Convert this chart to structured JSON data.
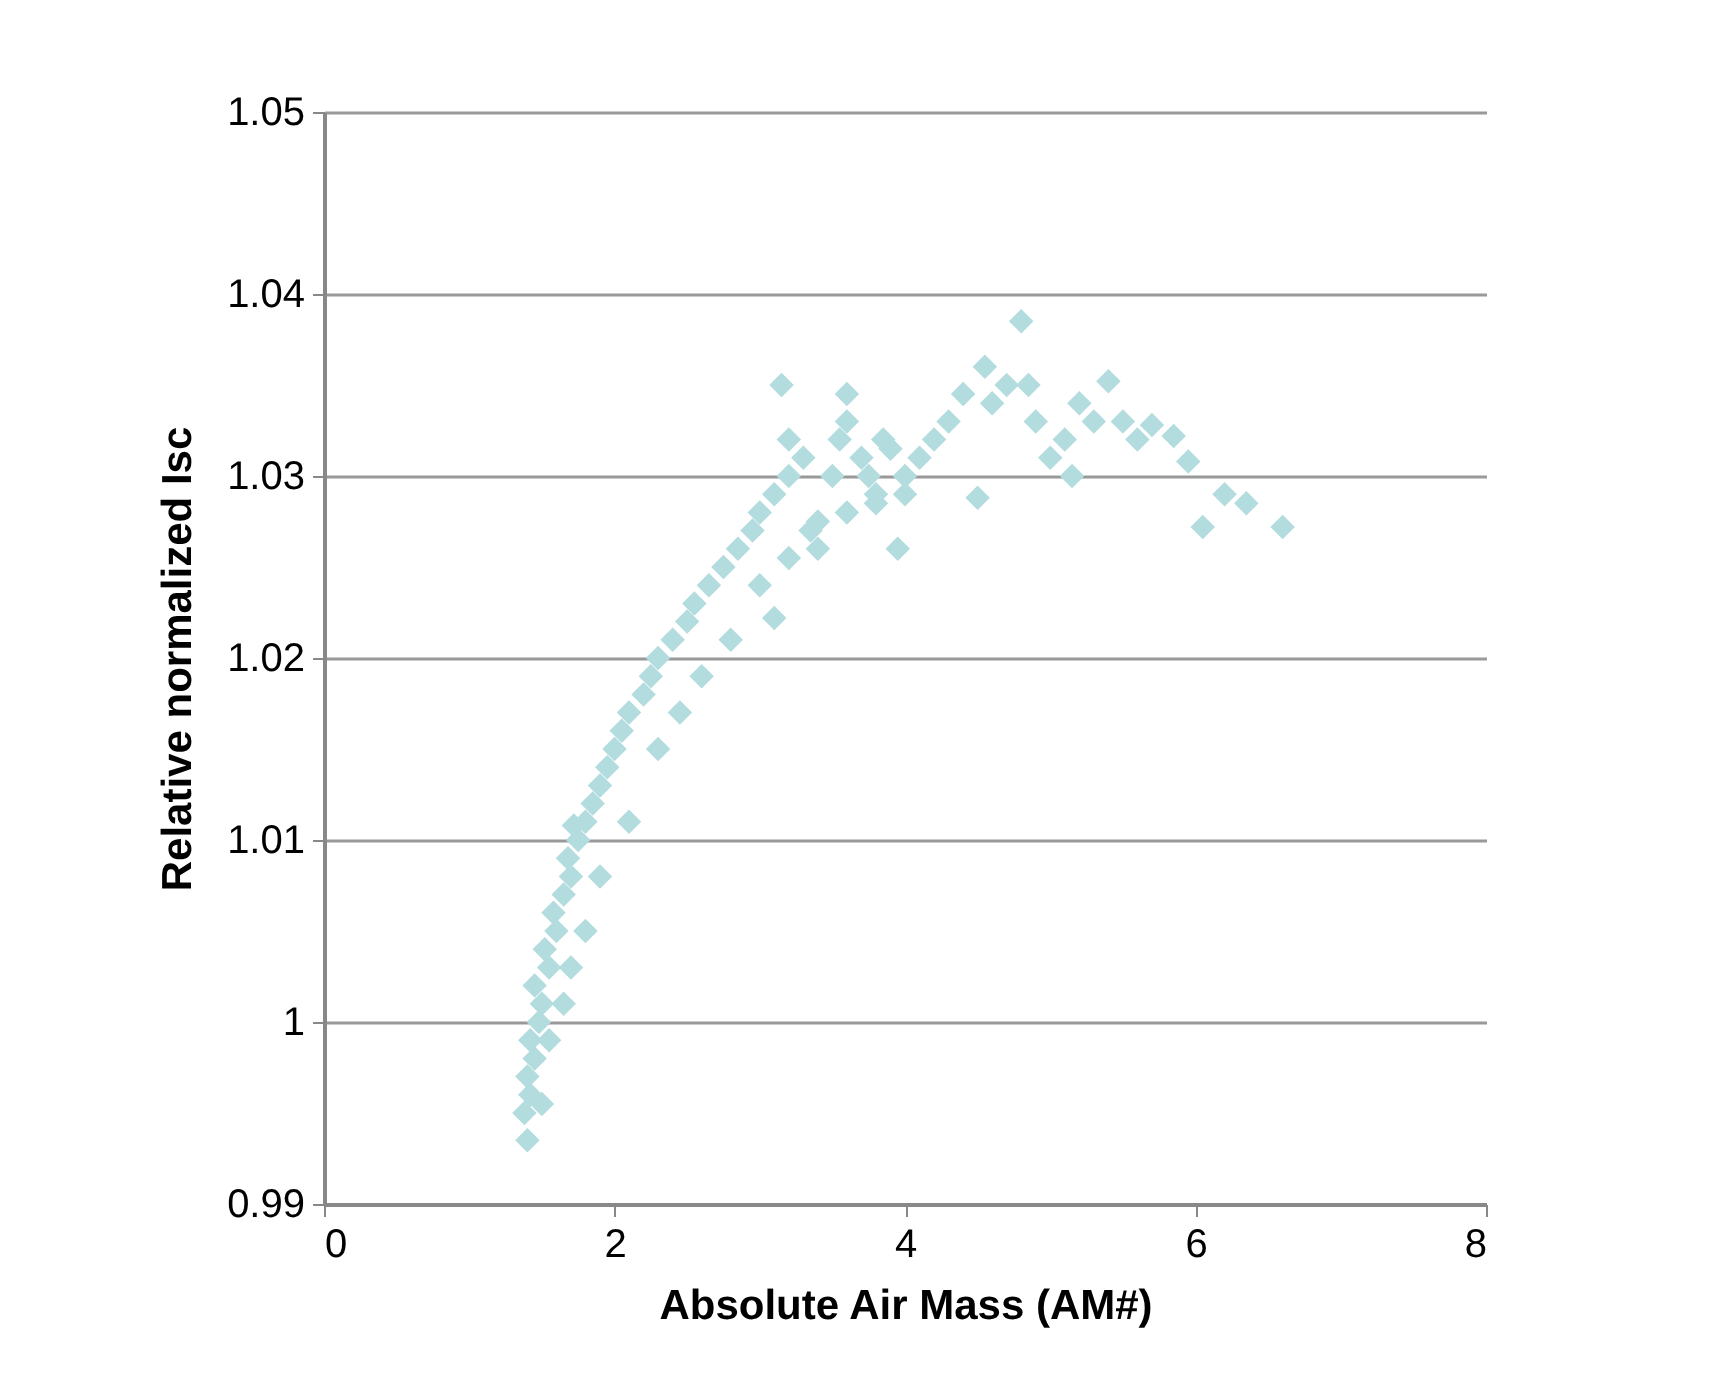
{
  "chart_data": {
    "type": "scatter",
    "xlabel": "Absolute Air Mass (AM#)",
    "ylabel": "Relative normalized Isc",
    "xlim": [
      0,
      8
    ],
    "xticks": [
      0,
      2,
      4,
      6,
      8
    ],
    "ylim": [
      0.99,
      1.05
    ],
    "yticks": [
      0.99,
      1,
      1.01,
      1.02,
      1.03,
      1.04,
      1.05
    ],
    "grid": "y",
    "marker": "diamond",
    "series": [
      {
        "color": "#b3dcdf",
        "x": [
          1.4,
          1.38,
          1.42,
          1.4,
          1.45,
          1.42,
          1.48,
          1.5,
          1.45,
          1.55,
          1.52,
          1.6,
          1.58,
          1.65,
          1.7,
          1.68,
          1.75,
          1.72,
          1.8,
          1.85,
          1.9,
          1.95,
          2.0,
          2.05,
          2.1,
          2.2,
          2.25,
          2.3,
          2.4,
          2.5,
          2.55,
          2.65,
          2.75,
          2.85,
          2.95,
          3.1,
          3.0,
          3.1,
          3.2,
          3.15,
          3.2,
          3.3,
          3.35,
          3.4,
          3.5,
          3.55,
          3.6,
          3.6,
          3.7,
          3.75,
          3.8,
          3.85,
          3.9,
          3.95,
          4.0,
          4.1,
          4.2,
          4.3,
          4.4,
          4.5,
          4.55,
          4.6,
          4.7,
          4.8,
          4.85,
          4.9,
          5.0,
          5.1,
          5.15,
          5.2,
          5.3,
          5.4,
          5.5,
          5.6,
          5.7,
          5.85,
          5.95,
          6.05,
          6.2,
          6.35,
          6.6,
          1.5,
          1.55,
          1.65,
          1.7,
          1.8,
          1.9,
          2.1,
          2.3,
          2.45,
          2.6,
          2.8,
          3.0,
          3.2,
          3.4,
          3.6,
          3.8,
          4.0
        ],
        "values": [
          0.9935,
          0.995,
          0.996,
          0.997,
          0.998,
          0.999,
          1.0,
          1.001,
          1.002,
          1.003,
          1.004,
          1.005,
          1.006,
          1.007,
          1.008,
          1.009,
          1.01,
          1.0108,
          1.011,
          1.012,
          1.013,
          1.014,
          1.015,
          1.016,
          1.017,
          1.018,
          1.019,
          1.02,
          1.021,
          1.022,
          1.023,
          1.024,
          1.025,
          1.026,
          1.027,
          1.0222,
          1.028,
          1.029,
          1.03,
          1.035,
          1.032,
          1.031,
          1.027,
          1.026,
          1.03,
          1.032,
          1.0345,
          1.033,
          1.031,
          1.03,
          1.029,
          1.032,
          1.0315,
          1.026,
          1.03,
          1.031,
          1.032,
          1.033,
          1.0345,
          1.0288,
          1.036,
          1.034,
          1.035,
          1.0385,
          1.035,
          1.033,
          1.031,
          1.032,
          1.03,
          1.034,
          1.033,
          1.0352,
          1.033,
          1.032,
          1.0328,
          1.0322,
          1.0308,
          1.0272,
          1.029,
          1.0285,
          1.0272,
          0.9955,
          0.999,
          1.001,
          1.003,
          1.005,
          1.008,
          1.011,
          1.015,
          1.017,
          1.019,
          1.021,
          1.024,
          1.0255,
          1.0275,
          1.028,
          1.0285,
          1.029
        ]
      }
    ]
  }
}
